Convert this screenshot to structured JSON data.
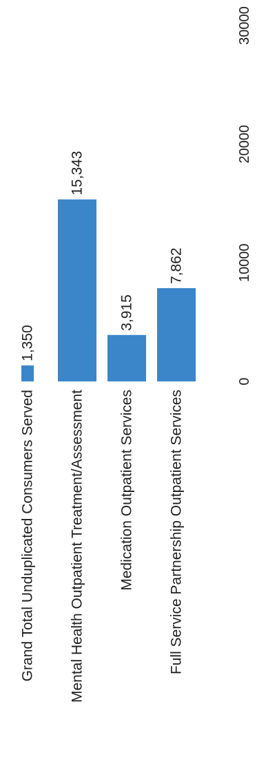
{
  "chart_data": {
    "type": "bar",
    "orientation": "horizontal",
    "categories": [
      "Grand Total Unduplicated Consumers Served",
      "Mental Health Outpatient Treatment/Assessment",
      "Medication Outpatient Services",
      "Full Service Partnership Outpatient Services"
    ],
    "values": [
      1350,
      15343,
      3915,
      7862
    ],
    "value_labels": [
      "1,350",
      "15,343",
      "3,915",
      "7,862"
    ],
    "ticks": [
      0,
      10000,
      20000,
      30000
    ],
    "tick_labels": [
      "0",
      "10000",
      "20000",
      "30000"
    ],
    "xlim": [
      0,
      30000
    ],
    "grid": false,
    "legend": "none",
    "bar_color": "#3a86c8",
    "text_color": "#1f1f1f"
  }
}
